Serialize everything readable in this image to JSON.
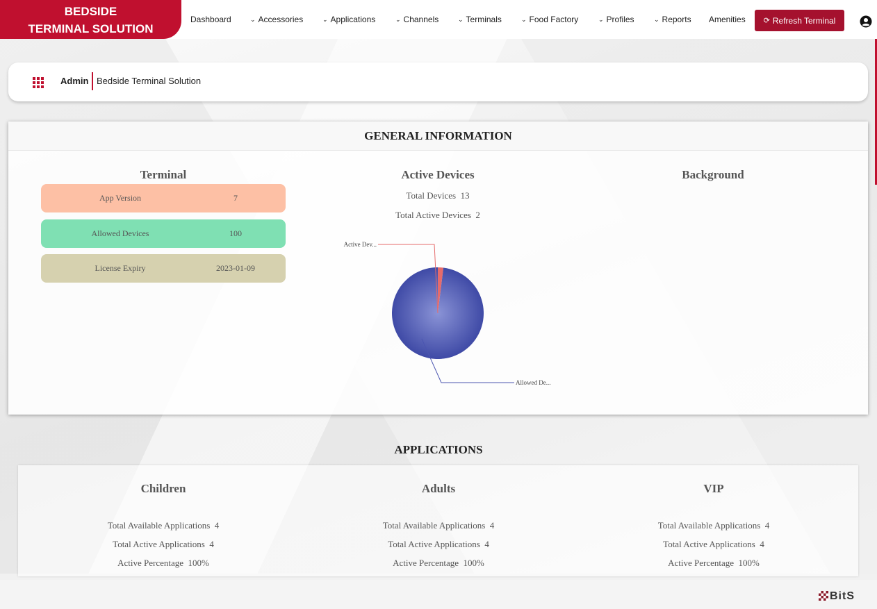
{
  "brand": {
    "line1": "BEDSIDE",
    "line2": "TERMINAL SOLUTION"
  },
  "nav": {
    "items": [
      {
        "label": "Dashboard",
        "dropdown": false
      },
      {
        "label": "Accessories",
        "dropdown": true
      },
      {
        "label": "Applications",
        "dropdown": true
      },
      {
        "label": "Channels",
        "dropdown": true
      },
      {
        "label": "Terminals",
        "dropdown": true
      },
      {
        "label": "Food Factory",
        "dropdown": true
      },
      {
        "label": "Profiles",
        "dropdown": true
      },
      {
        "label": "Reports",
        "dropdown": true
      },
      {
        "label": "Amenities",
        "dropdown": false
      }
    ],
    "refresh_label": "Refresh Terminal",
    "user_icon": "user-circle-icon"
  },
  "breadcrumb": {
    "role": "Admin",
    "app": "Bedside Terminal Solution"
  },
  "general": {
    "title": "GENERAL INFORMATION",
    "terminal": {
      "title": "Terminal",
      "rows": [
        {
          "label": "App Version",
          "value": "7",
          "color": "#fdc0a5"
        },
        {
          "label": "Allowed Devices",
          "value": "100",
          "color": "#7fe0b3"
        },
        {
          "label": "License Expiry",
          "value": "2023-01-09",
          "color": "#d6d1af"
        }
      ]
    },
    "active_devices": {
      "title": "Active Devices",
      "total_devices_label": "Total Devices",
      "total_devices": "13",
      "total_active_label": "Total Active Devices",
      "total_active": "2"
    },
    "background": {
      "title": "Background"
    }
  },
  "chart_data": {
    "type": "pie",
    "labels": [
      "Active Dev...",
      "Allowed De..."
    ],
    "values": [
      2,
      100
    ],
    "colors": [
      "#e56b6b",
      "#4b55b0"
    ]
  },
  "applications": {
    "title": "APPLICATIONS",
    "columns": [
      {
        "title": "Children",
        "available_label": "Total Available Applications",
        "available": "4",
        "active_label": "Total Active Applications",
        "active": "4",
        "pct_label": "Active Percentage",
        "pct": "100%"
      },
      {
        "title": "Adults",
        "available_label": "Total Available Applications",
        "available": "4",
        "active_label": "Total Active Applications",
        "active": "4",
        "pct_label": "Active Percentage",
        "pct": "100%"
      },
      {
        "title": "VIP",
        "available_label": "Total Available Applications",
        "available": "4",
        "active_label": "Total Active Applications",
        "active": "4",
        "pct_label": "Active Percentage",
        "pct": "100%"
      }
    ]
  },
  "footer": {
    "logo": "BitS"
  }
}
